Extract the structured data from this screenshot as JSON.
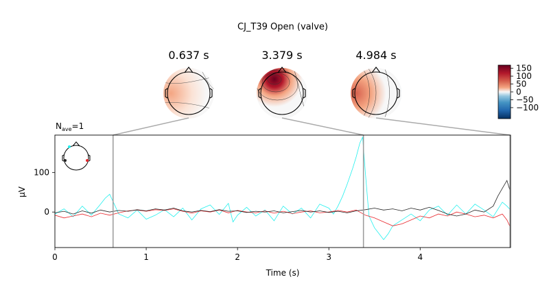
{
  "chart_data": {
    "type": "line",
    "title": "CJ_T39 Open (valve)",
    "nave_label": "N",
    "nave_sub": "ave",
    "nave_value": "=1",
    "xlabel": "Time (s)",
    "ylabel": "µV",
    "xlim": [
      0,
      4.99
    ],
    "ylim": [
      -90,
      195
    ],
    "x_ticks": [
      0,
      1,
      2,
      3,
      4
    ],
    "x_tick_labels": [
      "0",
      "1",
      "2",
      "3",
      "4"
    ],
    "y_ticks": [
      0,
      100
    ],
    "y_tick_labels": [
      "0",
      "100"
    ],
    "topomap_times": [
      {
        "time": 0.637,
        "label": "0.637 s"
      },
      {
        "time": 3.379,
        "label": "3.379 s"
      },
      {
        "time": 4.984,
        "label": "4.984 s"
      }
    ],
    "colorbar": {
      "range": [
        -170,
        170
      ],
      "ticks": [
        150,
        100,
        50,
        0,
        -50,
        -100
      ],
      "tick_labels": [
        "150",
        "100",
        "50",
        "0",
        "−50",
        "−100"
      ]
    },
    "series": [
      {
        "color": "#22f0ee",
        "points": [
          [
            0,
            -5
          ],
          [
            0.1,
            8
          ],
          [
            0.2,
            -12
          ],
          [
            0.3,
            15
          ],
          [
            0.4,
            -8
          ],
          [
            0.5,
            20
          ],
          [
            0.55,
            35
          ],
          [
            0.6,
            45
          ],
          [
            0.65,
            20
          ],
          [
            0.7,
            -5
          ],
          [
            0.8,
            -15
          ],
          [
            0.9,
            5
          ],
          [
            1.0,
            -18
          ],
          [
            1.1,
            -8
          ],
          [
            1.2,
            6
          ],
          [
            1.3,
            -12
          ],
          [
            1.4,
            10
          ],
          [
            1.5,
            -20
          ],
          [
            1.6,
            8
          ],
          [
            1.7,
            18
          ],
          [
            1.8,
            -6
          ],
          [
            1.9,
            22
          ],
          [
            1.95,
            -25
          ],
          [
            2.0,
            -8
          ],
          [
            2.1,
            12
          ],
          [
            2.2,
            -10
          ],
          [
            2.3,
            5
          ],
          [
            2.4,
            -22
          ],
          [
            2.5,
            15
          ],
          [
            2.6,
            -5
          ],
          [
            2.7,
            10
          ],
          [
            2.8,
            -15
          ],
          [
            2.9,
            20
          ],
          [
            3.0,
            10
          ],
          [
            3.05,
            -5
          ],
          [
            3.1,
            15
          ],
          [
            3.15,
            40
          ],
          [
            3.2,
            70
          ],
          [
            3.26,
            110
          ],
          [
            3.3,
            140
          ],
          [
            3.34,
            175
          ],
          [
            3.37,
            190
          ],
          [
            3.4,
            100
          ],
          [
            3.44,
            -10
          ],
          [
            3.5,
            -40
          ],
          [
            3.55,
            -55
          ],
          [
            3.6,
            -70
          ],
          [
            3.65,
            -55
          ],
          [
            3.7,
            -35
          ],
          [
            3.8,
            -20
          ],
          [
            3.9,
            -5
          ],
          [
            4.0,
            -22
          ],
          [
            4.1,
            5
          ],
          [
            4.2,
            15
          ],
          [
            4.3,
            -8
          ],
          [
            4.4,
            18
          ],
          [
            4.5,
            -5
          ],
          [
            4.6,
            20
          ],
          [
            4.7,
            5
          ],
          [
            4.8,
            -12
          ],
          [
            4.9,
            25
          ],
          [
            4.95,
            15
          ],
          [
            4.99,
            5
          ]
        ]
      },
      {
        "color": "#e8262b",
        "points": [
          [
            0,
            -8
          ],
          [
            0.1,
            -15
          ],
          [
            0.2,
            -10
          ],
          [
            0.3,
            -5
          ],
          [
            0.4,
            -12
          ],
          [
            0.5,
            -3
          ],
          [
            0.6,
            -8
          ],
          [
            0.7,
            -2
          ],
          [
            0.8,
            3
          ],
          [
            0.9,
            5
          ],
          [
            1.0,
            2
          ],
          [
            1.1,
            6
          ],
          [
            1.2,
            4
          ],
          [
            1.3,
            8
          ],
          [
            1.4,
            2
          ],
          [
            1.5,
            -3
          ],
          [
            1.6,
            3
          ],
          [
            1.7,
            0
          ],
          [
            1.8,
            5
          ],
          [
            1.9,
            -2
          ],
          [
            2.0,
            4
          ],
          [
            2.1,
            0
          ],
          [
            2.2,
            -2
          ],
          [
            2.3,
            3
          ],
          [
            2.4,
            -3
          ],
          [
            2.5,
            2
          ],
          [
            2.6,
            -4
          ],
          [
            2.7,
            0
          ],
          [
            2.8,
            3
          ],
          [
            2.9,
            -2
          ],
          [
            3.0,
            0
          ],
          [
            3.1,
            4
          ],
          [
            3.2,
            0
          ],
          [
            3.3,
            5
          ],
          [
            3.4,
            -8
          ],
          [
            3.5,
            -15
          ],
          [
            3.6,
            -25
          ],
          [
            3.7,
            -35
          ],
          [
            3.8,
            -30
          ],
          [
            3.9,
            -20
          ],
          [
            4.0,
            -10
          ],
          [
            4.1,
            -15
          ],
          [
            4.2,
            -5
          ],
          [
            4.3,
            -10
          ],
          [
            4.4,
            0
          ],
          [
            4.5,
            -5
          ],
          [
            4.6,
            -12
          ],
          [
            4.7,
            -8
          ],
          [
            4.8,
            -15
          ],
          [
            4.9,
            -5
          ],
          [
            4.95,
            -20
          ],
          [
            4.99,
            -40
          ]
        ]
      },
      {
        "color": "#222222",
        "points": [
          [
            0,
            -2
          ],
          [
            0.1,
            2
          ],
          [
            0.2,
            -5
          ],
          [
            0.3,
            3
          ],
          [
            0.4,
            -3
          ],
          [
            0.5,
            5
          ],
          [
            0.6,
            0
          ],
          [
            0.7,
            4
          ],
          [
            0.8,
            2
          ],
          [
            0.9,
            6
          ],
          [
            1.0,
            3
          ],
          [
            1.1,
            8
          ],
          [
            1.2,
            5
          ],
          [
            1.3,
            10
          ],
          [
            1.4,
            3
          ],
          [
            1.5,
            0
          ],
          [
            1.6,
            4
          ],
          [
            1.7,
            1
          ],
          [
            1.8,
            6
          ],
          [
            1.9,
            2
          ],
          [
            2.0,
            3
          ],
          [
            2.1,
            -1
          ],
          [
            2.2,
            2
          ],
          [
            2.3,
            0
          ],
          [
            2.4,
            3
          ],
          [
            2.5,
            -2
          ],
          [
            2.6,
            1
          ],
          [
            2.7,
            4
          ],
          [
            2.8,
            0
          ],
          [
            2.9,
            3
          ],
          [
            3.0,
            -1
          ],
          [
            3.1,
            2
          ],
          [
            3.2,
            -2
          ],
          [
            3.3,
            3
          ],
          [
            3.4,
            6
          ],
          [
            3.5,
            10
          ],
          [
            3.6,
            5
          ],
          [
            3.7,
            8
          ],
          [
            3.8,
            3
          ],
          [
            3.9,
            10
          ],
          [
            4.0,
            5
          ],
          [
            4.1,
            12
          ],
          [
            4.2,
            4
          ],
          [
            4.3,
            -5
          ],
          [
            4.4,
            -10
          ],
          [
            4.5,
            -5
          ],
          [
            4.6,
            5
          ],
          [
            4.7,
            0
          ],
          [
            4.8,
            15
          ],
          [
            4.85,
            40
          ],
          [
            4.9,
            60
          ],
          [
            4.95,
            80
          ],
          [
            4.99,
            50
          ]
        ]
      }
    ]
  }
}
